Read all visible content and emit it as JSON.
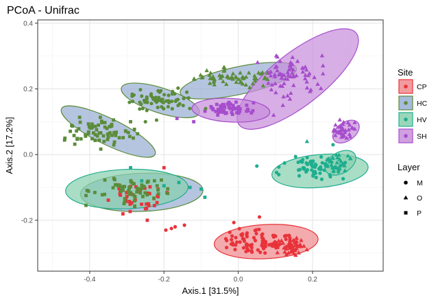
{
  "chart_data": {
    "type": "scatter",
    "title": "PCoA - Unifrac",
    "xlabel": "Axis.1   [31.5%]",
    "ylabel": "Axis.2   [17.2%]",
    "xlim": [
      -0.54,
      0.39
    ],
    "ylim": [
      -0.355,
      0.41
    ],
    "xticks": [
      -0.4,
      -0.2,
      0.0,
      0.2
    ],
    "xtick_labels": [
      "-0.4",
      "-0.2",
      "0.0",
      "0.2"
    ],
    "yticks": [
      -0.2,
      0.0,
      0.2,
      0.4
    ],
    "ytick_labels": [
      "-0.2",
      "0.0",
      "0.2",
      "0.4"
    ],
    "grid": true,
    "legend": {
      "placement": "right",
      "site_title": "Site",
      "sites": [
        {
          "name": "CP",
          "color": "#E8333B",
          "fill": "#F08A8E"
        },
        {
          "name": "HC",
          "color": "#5B8C3A",
          "fill": "#98AFD3"
        },
        {
          "name": "HV",
          "color": "#1FAD8F",
          "fill": "#88D0AE"
        },
        {
          "name": "SH",
          "color": "#A64DCC",
          "fill": "#C88FDB"
        }
      ],
      "layer_title": "Layer",
      "layers": [
        {
          "name": "M",
          "shape": "circle"
        },
        {
          "name": "O",
          "shape": "triangle"
        },
        {
          "name": "P",
          "shape": "square"
        }
      ]
    },
    "ellipses": [
      {
        "site": "CP",
        "cx": 0.075,
        "cy": -0.265,
        "rx": 0.14,
        "ry": 0.052,
        "angle": -3
      },
      {
        "site": "HC",
        "cx": -0.26,
        "cy": -0.115,
        "rx": 0.165,
        "ry": 0.058,
        "angle": -2
      },
      {
        "site": "HC",
        "cx": -0.35,
        "cy": 0.07,
        "rx": 0.14,
        "ry": 0.04,
        "angle": 26
      },
      {
        "site": "HC",
        "cx": -0.21,
        "cy": 0.165,
        "rx": 0.11,
        "ry": 0.038,
        "angle": 18
      },
      {
        "site": "HC",
        "cx": 0.0,
        "cy": 0.225,
        "rx": 0.16,
        "ry": 0.042,
        "angle": -12
      },
      {
        "site": "HV",
        "cx": -0.3,
        "cy": -0.105,
        "rx": 0.165,
        "ry": 0.06,
        "angle": -2
      },
      {
        "site": "HV",
        "cx": 0.22,
        "cy": -0.05,
        "rx": 0.13,
        "ry": 0.05,
        "angle": -5
      },
      {
        "site": "HV",
        "cx": 0.275,
        "cy": -0.025,
        "rx": 0.045,
        "ry": 0.032,
        "angle": -30
      },
      {
        "site": "SH",
        "cx": 0.16,
        "cy": 0.23,
        "rx": 0.2,
        "ry": 0.08,
        "angle": -38
      },
      {
        "site": "SH",
        "cx": -0.02,
        "cy": 0.135,
        "rx": 0.105,
        "ry": 0.036,
        "angle": 3
      },
      {
        "site": "SH",
        "cx": 0.29,
        "cy": 0.07,
        "rx": 0.04,
        "ry": 0.028,
        "angle": -35
      }
    ],
    "clusters": [
      {
        "site": "CP",
        "layer": "M",
        "cx": 0.04,
        "cy": -0.265,
        "sx": 0.045,
        "sy": 0.018,
        "n": 90
      },
      {
        "site": "CP",
        "layer": "O",
        "cx": 0.145,
        "cy": -0.28,
        "sx": 0.018,
        "sy": 0.012,
        "n": 55
      },
      {
        "site": "CP",
        "layer": "P",
        "cx": -0.28,
        "cy": -0.135,
        "sx": 0.04,
        "sy": 0.025,
        "n": 40
      },
      {
        "site": "HC",
        "layer": "P",
        "cx": -0.3,
        "cy": -0.11,
        "sx": 0.05,
        "sy": 0.022,
        "n": 60
      },
      {
        "site": "HC",
        "layer": "P",
        "cx": -0.37,
        "cy": 0.065,
        "sx": 0.045,
        "sy": 0.022,
        "n": 70
      },
      {
        "site": "HC",
        "layer": "M",
        "cx": -0.205,
        "cy": 0.165,
        "sx": 0.04,
        "sy": 0.017,
        "n": 65
      },
      {
        "site": "HC",
        "layer": "O",
        "cx": -0.02,
        "cy": 0.235,
        "sx": 0.045,
        "sy": 0.014,
        "n": 65
      },
      {
        "site": "HV",
        "layer": "M",
        "cx": 0.2,
        "cy": -0.04,
        "sx": 0.045,
        "sy": 0.016,
        "n": 60
      },
      {
        "site": "HV",
        "layer": "O",
        "cx": 0.27,
        "cy": -0.025,
        "sx": 0.016,
        "sy": 0.014,
        "n": 30
      },
      {
        "site": "SH",
        "layer": "O",
        "cx": 0.14,
        "cy": 0.235,
        "sx": 0.04,
        "sy": 0.03,
        "n": 70
      },
      {
        "site": "SH",
        "layer": "P",
        "cx": -0.02,
        "cy": 0.14,
        "sx": 0.035,
        "sy": 0.012,
        "n": 55
      },
      {
        "site": "SH",
        "layer": "O",
        "cx": 0.285,
        "cy": 0.075,
        "sx": 0.015,
        "sy": 0.014,
        "n": 35
      }
    ],
    "scattered_points": [
      {
        "site": "CP",
        "layer": "M",
        "x": -0.18,
        "y": -0.225
      },
      {
        "site": "CP",
        "layer": "M",
        "x": -0.195,
        "y": -0.23
      },
      {
        "site": "CP",
        "layer": "M",
        "x": -0.17,
        "y": -0.22
      },
      {
        "site": "CP",
        "layer": "M",
        "x": -0.145,
        "y": -0.215
      },
      {
        "site": "CP",
        "layer": "M",
        "x": 0.057,
        "y": -0.19
      },
      {
        "site": "CP",
        "layer": "M",
        "x": -0.012,
        "y": -0.207
      },
      {
        "site": "CP",
        "layer": "P",
        "x": -0.2,
        "y": -0.04
      },
      {
        "site": "CP",
        "layer": "P",
        "x": -0.245,
        "y": -0.2
      },
      {
        "site": "CP",
        "layer": "P",
        "x": -0.25,
        "y": -0.165
      },
      {
        "site": "HC",
        "layer": "M",
        "x": -0.22,
        "y": 0.105
      },
      {
        "site": "HC",
        "layer": "M",
        "x": -0.25,
        "y": 0.1
      },
      {
        "site": "HC",
        "layer": "M",
        "x": -0.088,
        "y": 0.14
      },
      {
        "site": "HC",
        "layer": "P",
        "x": -0.29,
        "y": 0.1
      },
      {
        "site": "HC",
        "layer": "P",
        "x": -0.215,
        "y": -0.12
      },
      {
        "site": "HV",
        "layer": "P",
        "x": -0.29,
        "y": -0.04
      },
      {
        "site": "HV",
        "layer": "P",
        "x": -0.26,
        "y": -0.08
      },
      {
        "site": "HV",
        "layer": "P",
        "x": -0.2,
        "y": -0.095
      },
      {
        "site": "HV",
        "layer": "P",
        "x": -0.16,
        "y": -0.085
      },
      {
        "site": "HV",
        "layer": "P",
        "x": -0.13,
        "y": -0.1
      },
      {
        "site": "HV",
        "layer": "P",
        "x": -0.1,
        "y": -0.105
      },
      {
        "site": "HV",
        "layer": "P",
        "x": -0.09,
        "y": -0.13
      },
      {
        "site": "HV",
        "layer": "M",
        "x": 0.05,
        "y": -0.035
      },
      {
        "site": "HV",
        "layer": "M",
        "x": 0.255,
        "y": 0.03
      },
      {
        "site": "HV",
        "layer": "O",
        "x": 0.185,
        "y": 0.04
      },
      {
        "site": "SH",
        "layer": "P",
        "x": -0.165,
        "y": 0.11
      },
      {
        "site": "SH",
        "layer": "P",
        "x": -0.12,
        "y": 0.1
      },
      {
        "site": "SH",
        "layer": "O",
        "x": 0.095,
        "y": 0.12
      },
      {
        "site": "SH",
        "layer": "O",
        "x": 0.12,
        "y": 0.15
      }
    ]
  }
}
